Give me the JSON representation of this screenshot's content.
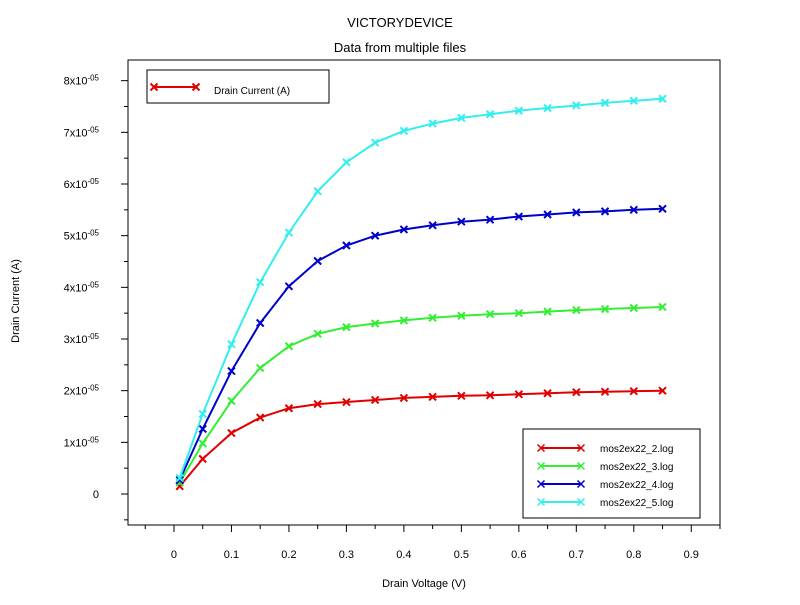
{
  "window": {
    "app_title": "VICTORYDEVICE"
  },
  "chart_data": {
    "type": "line",
    "title": "VICTORYDEVICE",
    "subtitle": "Data from multiple files",
    "xlabel": "Drain Voltage (V)",
    "ylabel": "Drain Current (A)",
    "xlim": [
      -0.08,
      0.95
    ],
    "ylim": [
      -6e-06,
      8.4e-05
    ],
    "grid": false,
    "x_ticks": [
      {
        "value": 0,
        "label": "0"
      },
      {
        "value": 0.1,
        "label": "0.1"
      },
      {
        "value": 0.2,
        "label": "0.2"
      },
      {
        "value": 0.3,
        "label": "0.3"
      },
      {
        "value": 0.4,
        "label": "0.4"
      },
      {
        "value": 0.5,
        "label": "0.5"
      },
      {
        "value": 0.6,
        "label": "0.6"
      },
      {
        "value": 0.7,
        "label": "0.7"
      },
      {
        "value": 0.8,
        "label": "0.8"
      },
      {
        "value": 0.9,
        "label": "0.9"
      }
    ],
    "y_ticks": [
      {
        "value": 0,
        "mantissa": "0",
        "exp": ""
      },
      {
        "value": 1e-05,
        "mantissa": "1x10",
        "exp": "-05"
      },
      {
        "value": 2e-05,
        "mantissa": "2x10",
        "exp": "-05"
      },
      {
        "value": 3e-05,
        "mantissa": "3x10",
        "exp": "-05"
      },
      {
        "value": 4e-05,
        "mantissa": "4x10",
        "exp": "-05"
      },
      {
        "value": 5e-05,
        "mantissa": "5x10",
        "exp": "-05"
      },
      {
        "value": 6e-05,
        "mantissa": "6x10",
        "exp": "-05"
      },
      {
        "value": 7e-05,
        "mantissa": "7x10",
        "exp": "-05"
      },
      {
        "value": 8e-05,
        "mantissa": "8x10",
        "exp": "-05"
      }
    ],
    "legend_top": {
      "placement": "top-left",
      "label": "Drain Current (A)",
      "color": "#e00000"
    },
    "legend_files": {
      "placement": "bottom-right"
    },
    "x": [
      0.01,
      0.05,
      0.1,
      0.15,
      0.2,
      0.25,
      0.3,
      0.35,
      0.4,
      0.45,
      0.5,
      0.55,
      0.6,
      0.65,
      0.7,
      0.75,
      0.8,
      0.85
    ],
    "series": [
      {
        "name": "mos2ex22_2.log",
        "color": "#e00000",
        "values": [
          1.5e-06,
          6.8e-06,
          1.18e-05,
          1.48e-05,
          1.66e-05,
          1.74e-05,
          1.78e-05,
          1.82e-05,
          1.86e-05,
          1.88e-05,
          1.9e-05,
          1.91e-05,
          1.93e-05,
          1.95e-05,
          1.97e-05,
          1.98e-05,
          1.99e-05,
          2e-05
        ]
      },
      {
        "name": "mos2ex22_3.log",
        "color": "#33ee33",
        "values": [
          2.2e-06,
          9.8e-06,
          1.8e-05,
          2.44e-05,
          2.86e-05,
          3.1e-05,
          3.23e-05,
          3.3e-05,
          3.36e-05,
          3.41e-05,
          3.45e-05,
          3.48e-05,
          3.5e-05,
          3.53e-05,
          3.56e-05,
          3.58e-05,
          3.6e-05,
          3.62e-05
        ]
      },
      {
        "name": "mos2ex22_4.log",
        "color": "#0000cc",
        "values": [
          2.7e-06,
          1.26e-05,
          2.38e-05,
          3.31e-05,
          4.02e-05,
          4.51e-05,
          4.81e-05,
          5e-05,
          5.12e-05,
          5.2e-05,
          5.27e-05,
          5.31e-05,
          5.37e-05,
          5.41e-05,
          5.45e-05,
          5.47e-05,
          5.5e-05,
          5.52e-05
        ]
      },
      {
        "name": "mos2ex22_5.log",
        "color": "#33eeee",
        "values": [
          3.1e-06,
          1.55e-05,
          2.9e-05,
          4.1e-05,
          5.06e-05,
          5.86e-05,
          6.42e-05,
          6.8e-05,
          7.03e-05,
          7.17e-05,
          7.28e-05,
          7.35e-05,
          7.42e-05,
          7.47e-05,
          7.52e-05,
          7.57e-05,
          7.61e-05,
          7.65e-05
        ]
      }
    ]
  }
}
